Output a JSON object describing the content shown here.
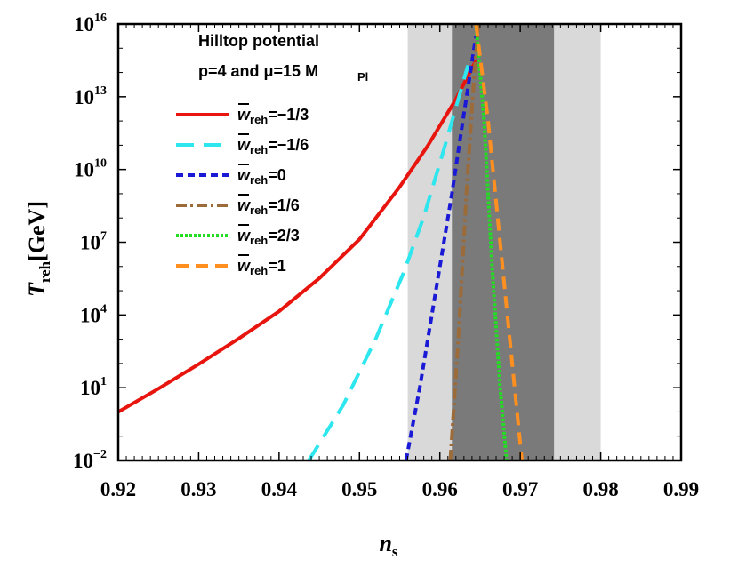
{
  "chart_data": {
    "type": "line",
    "title": "",
    "annotation_lines": [
      "Hilltop potential",
      "p=4 and μ=15 M",
      "Pl"
    ],
    "annotation_mu_symbol": "μ",
    "xlabel": {
      "main": "n",
      "sub": "s"
    },
    "ylabel": {
      "main": "T",
      "sub": "reh",
      "unit": "[GeV]"
    },
    "xlim": [
      0.92,
      0.99
    ],
    "ylog": true,
    "ylim_exponents": [
      -2,
      16
    ],
    "x_ticks": [
      "0.92",
      "0.93",
      "0.94",
      "0.95",
      "0.96",
      "0.97",
      "0.98",
      "0.99"
    ],
    "y_ticks": [
      {
        "base": "10",
        "exp": "−2",
        "value_exp": -2
      },
      {
        "base": "10",
        "exp": "1",
        "value_exp": 1
      },
      {
        "base": "10",
        "exp": "4",
        "value_exp": 4
      },
      {
        "base": "10",
        "exp": "7",
        "value_exp": 7
      },
      {
        "base": "10",
        "exp": "10",
        "value_exp": 10
      },
      {
        "base": "10",
        "exp": "13",
        "value_exp": 13
      },
      {
        "base": "10",
        "exp": "16",
        "value_exp": 16
      }
    ],
    "bands": [
      {
        "from": 0.956,
        "to": 0.98,
        "color": "#d9d9d9"
      },
      {
        "from": 0.9615,
        "to": 0.9742,
        "color": "#7a7a7a"
      }
    ],
    "legend_placement": "top-left",
    "series": [
      {
        "legend_main": "w",
        "legend_sub": "reh",
        "legend_value": "=−1/3",
        "color": "#e8150f",
        "dash": "solid",
        "x": [
          0.92,
          0.925,
          0.93,
          0.935,
          0.94,
          0.945,
          0.95,
          0.955,
          0.9585,
          0.962,
          0.9645
        ],
        "y_exp": [
          0.0,
          0.96,
          1.97,
          3.03,
          4.15,
          5.51,
          7.12,
          9.28,
          10.98,
          12.9,
          14.5
        ]
      },
      {
        "legend_main": "w",
        "legend_sub": "reh",
        "legend_value": "=−1/6",
        "color": "#2ee6ee",
        "dash": "20,11",
        "x": [
          0.9437,
          0.948,
          0.952,
          0.9555,
          0.958,
          0.9605,
          0.9635
        ],
        "y_exp": [
          -2.0,
          0.3,
          3.0,
          5.75,
          8.05,
          10.82,
          14.3
        ]
      },
      {
        "legend_main": "w",
        "legend_sub": "reh",
        "legend_value": "=0",
        "color": "#1a1ad6",
        "dash": "8,5",
        "x": [
          0.9558,
          0.9575,
          0.9595,
          0.9615,
          0.963,
          0.9645
        ],
        "y_exp": [
          -2.0,
          1.0,
          5.0,
          9.0,
          12.3,
          15.5
        ]
      },
      {
        "legend_main": "w",
        "legend_sub": "reh",
        "legend_value": "=1/6",
        "color": "#9b6b3a",
        "dash": "12,4,3,4",
        "x": [
          0.9613,
          0.9623,
          0.9633,
          0.9643,
          0.9648
        ],
        "y_exp": [
          -2.0,
          3.0,
          9.0,
          14.0,
          16.0
        ]
      },
      {
        "legend_main": "w",
        "legend_sub": "reh",
        "legend_value": "=2/3",
        "color": "#22dd22",
        "dash": "3,2",
        "x": [
          0.9645,
          0.9655,
          0.9665,
          0.9675,
          0.9683
        ],
        "y_exp": [
          16.0,
          12.0,
          6.0,
          1.0,
          -2.0
        ]
      },
      {
        "legend_main": "w",
        "legend_sub": "reh",
        "legend_value": "=1",
        "color": "#ff9020",
        "dash": "14,8",
        "x": [
          0.9645,
          0.966,
          0.9675,
          0.969,
          0.9702
        ],
        "y_exp": [
          16.0,
          12.0,
          7.0,
          2.0,
          -2.0
        ]
      }
    ]
  }
}
